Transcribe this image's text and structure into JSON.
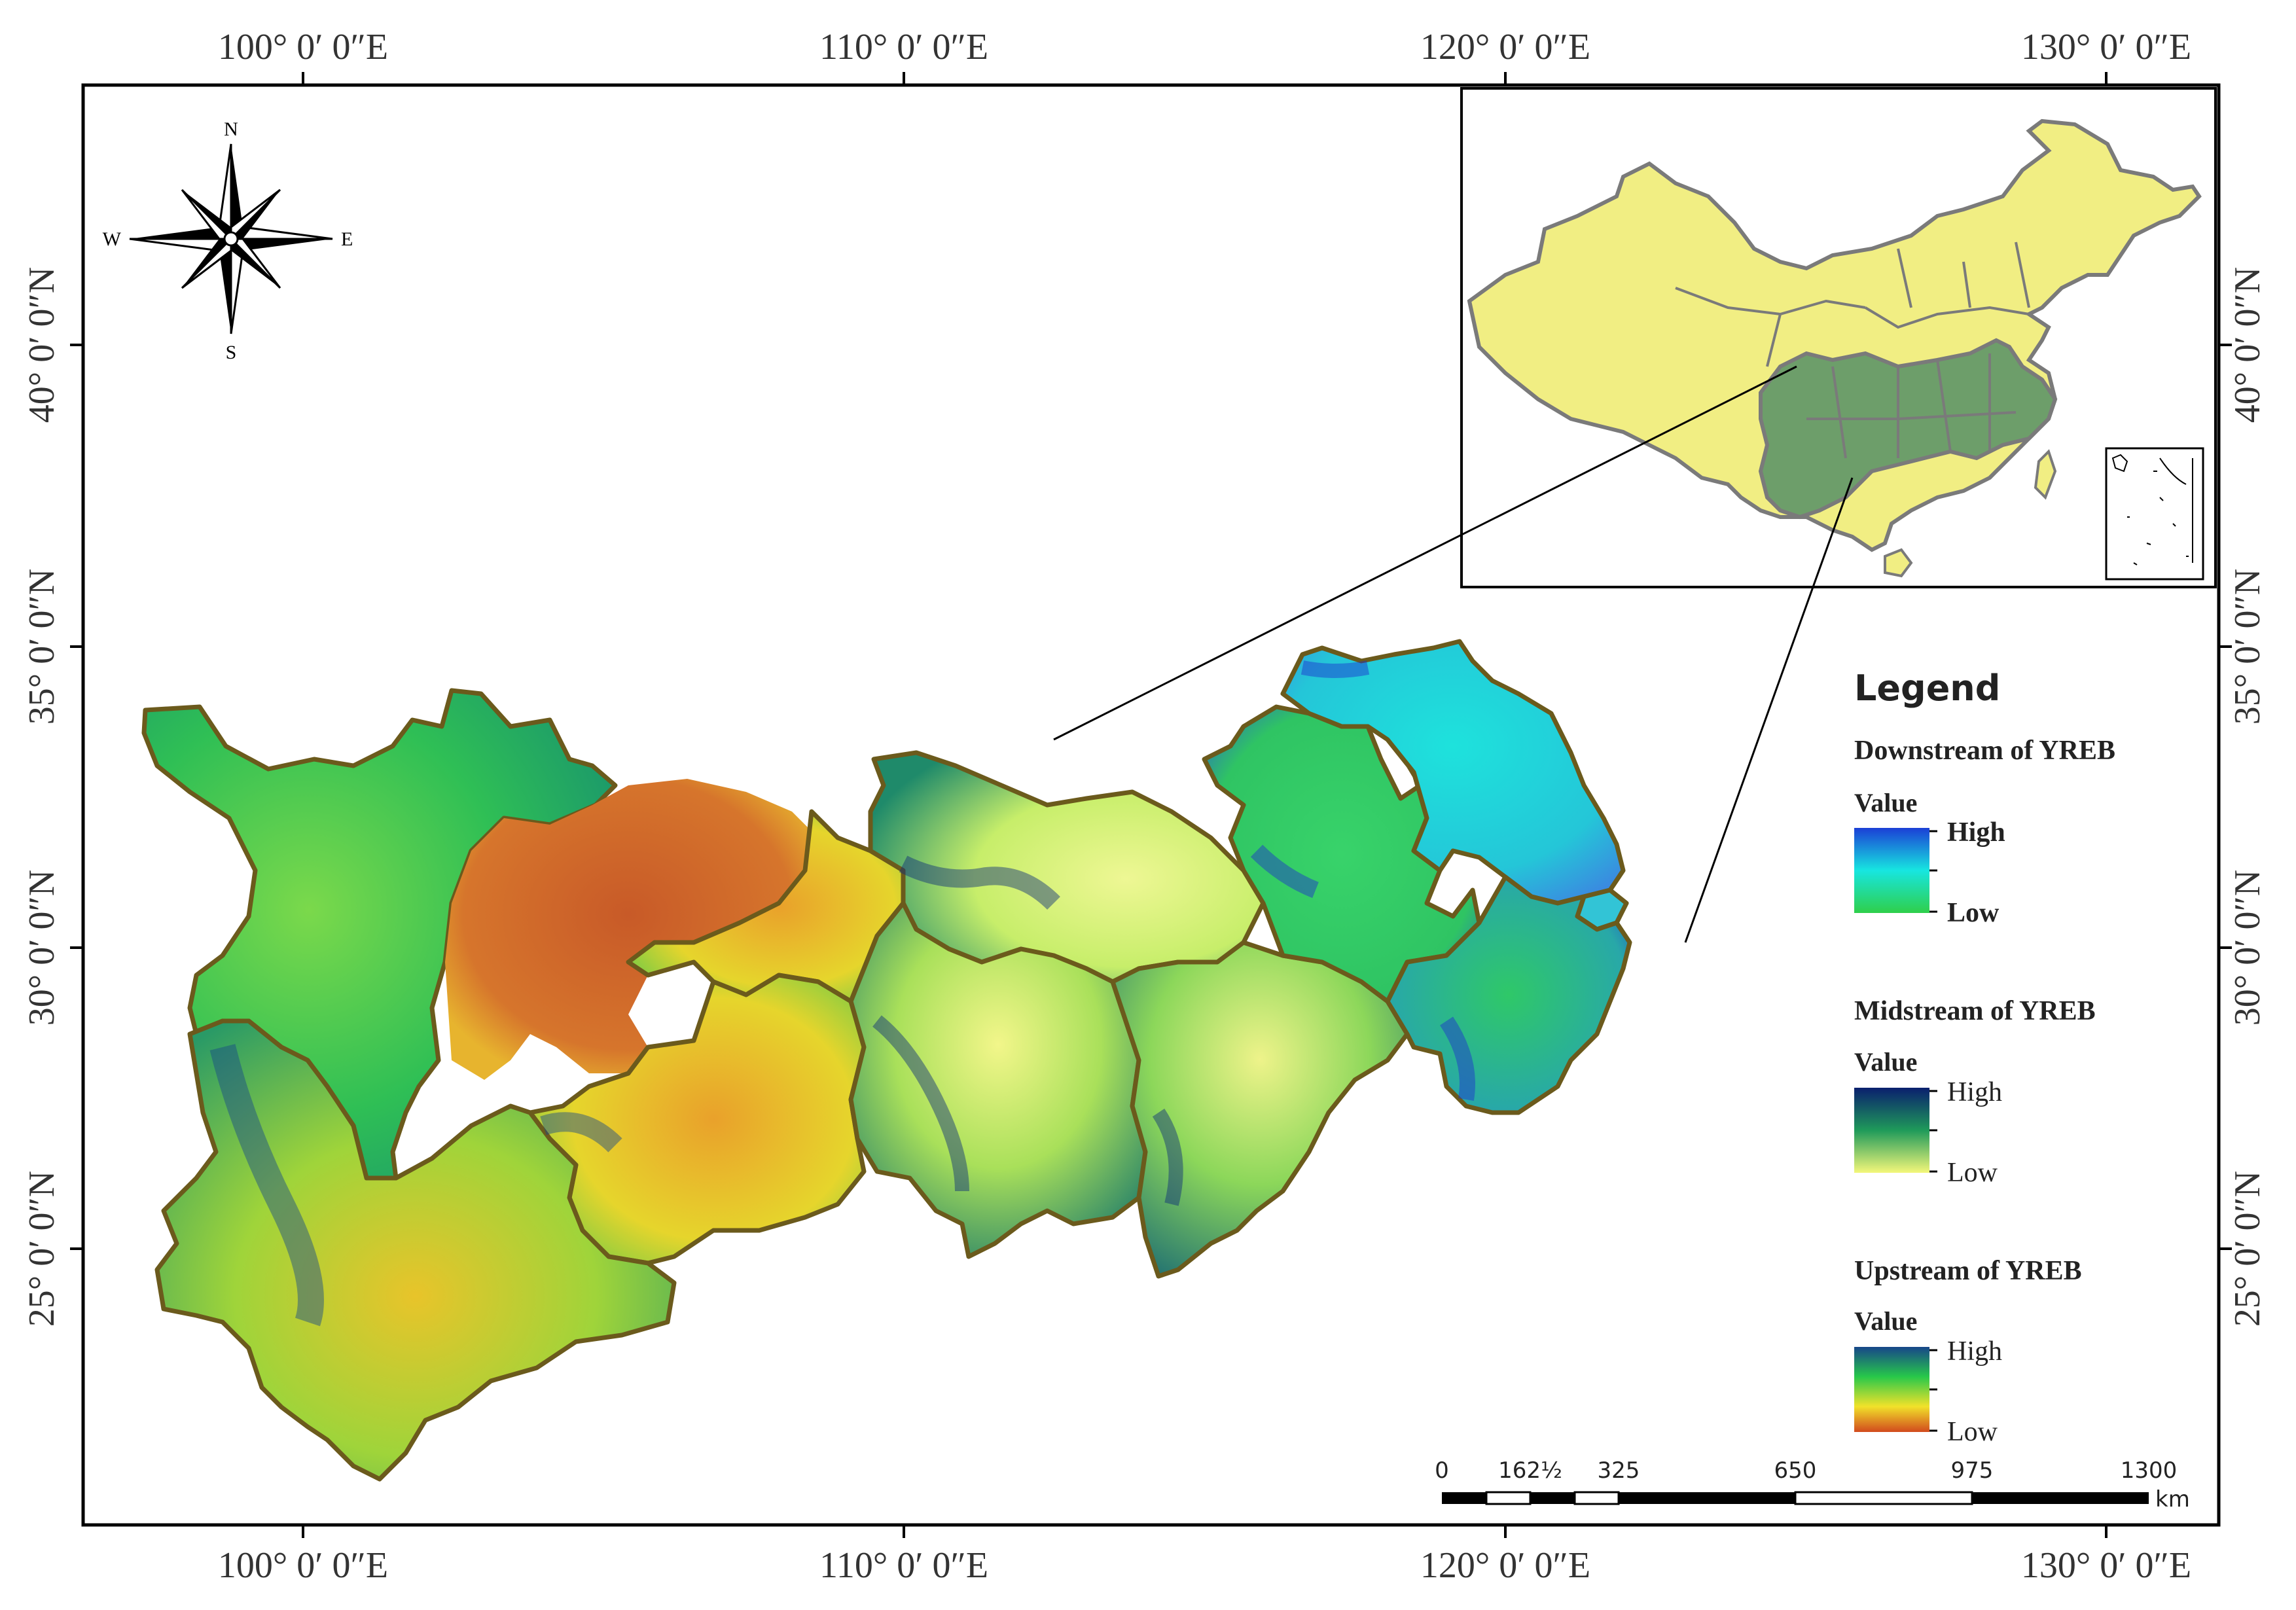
{
  "graticule": {
    "top_longitudes": [
      "100° 0′ 0″E",
      "110° 0′ 0″E",
      "120° 0′ 0″E",
      "130° 0′ 0″E"
    ],
    "bottom_longitudes": [
      "100° 0′ 0″E",
      "110° 0′ 0″E",
      "120° 0′ 0″E",
      "130° 0′ 0″E"
    ],
    "left_latitudes": [
      "40° 0′ 0″N",
      "35° 0′ 0″N",
      "30° 0′ 0″N",
      "25° 0′ 0″N"
    ],
    "right_latitudes": [
      "40° 0′ 0″N",
      "35° 0′ 0″N",
      "30° 0′ 0″N",
      "25° 0′ 0″N"
    ]
  },
  "compass": {
    "north": "N",
    "south": "S",
    "east": "E",
    "west": "W"
  },
  "legend": {
    "title": "Legend",
    "sections": [
      {
        "heading": "Downstream of YREB",
        "value_label": "Value",
        "high": "High",
        "low": "Low",
        "colors": {
          "high": "#1b3fd6",
          "mid": "#17e6e0",
          "low": "#2fcf4a"
        }
      },
      {
        "heading": "Midstream of YREB",
        "value_label": "Value",
        "high": "High",
        "low": "Low",
        "colors": {
          "high": "#0a1f6e",
          "mid": "#1f9a5a",
          "low": "#f4f77a"
        }
      },
      {
        "heading": "Upstream of YREB",
        "value_label": "Value",
        "high": "High",
        "low": "Low",
        "colors": {
          "high": "#17468a",
          "mid": "#27c84a",
          "low2": "#f1e22a",
          "low": "#d24a1d"
        }
      }
    ]
  },
  "scale_bar": {
    "ticks": [
      "0",
      "162½",
      "325",
      "650",
      "975",
      "1300"
    ],
    "unit": "km"
  },
  "inset": {
    "colors": {
      "china": "#f1ee83",
      "yreb": "#6d9e6a",
      "border": "#7a7a7a"
    }
  },
  "colors": {
    "frame": "#000000",
    "province_border": "#6b5a1c",
    "orange_basin": "#c96a2a"
  }
}
